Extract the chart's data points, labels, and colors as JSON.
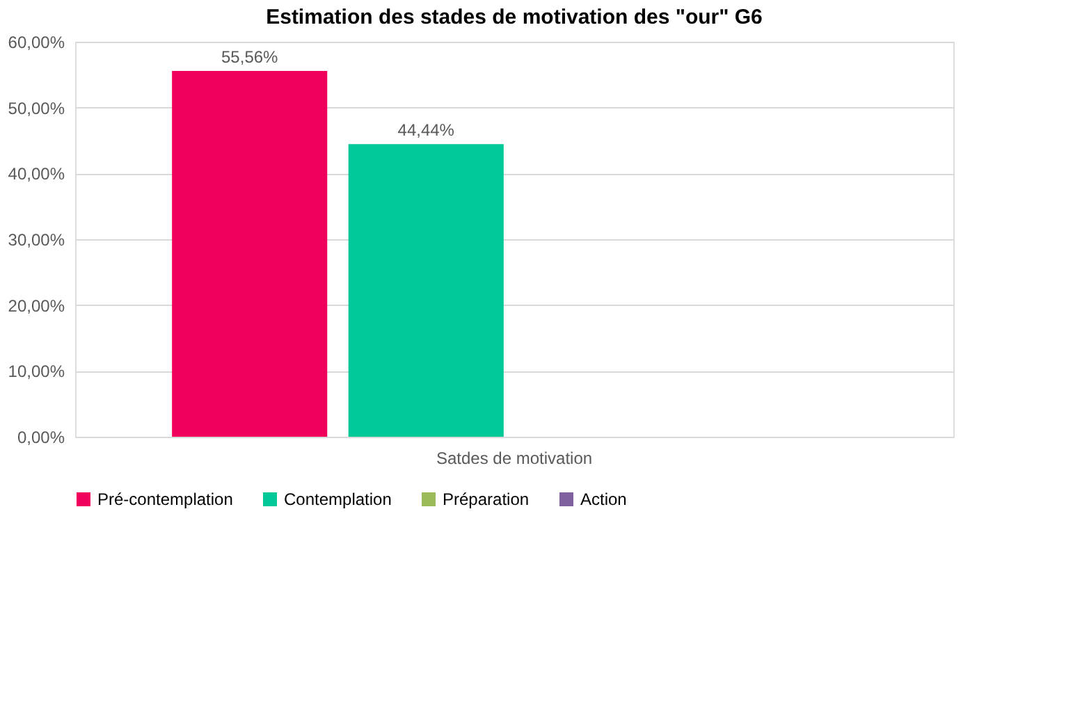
{
  "chart_data": {
    "type": "bar",
    "title": "Estimation des stades de motivation des \"our\" G6",
    "categories": [
      "Satdes de motivation"
    ],
    "series": [
      {
        "name": "Pré-contemplation",
        "color": "#f0005a",
        "values": [
          55.56
        ],
        "value_labels": [
          "55,56%"
        ]
      },
      {
        "name": "Contemplation",
        "color": "#00c896",
        "values": [
          44.44
        ],
        "value_labels": [
          "44,44%"
        ]
      },
      {
        "name": "Préparation",
        "color": "#9bbb59",
        "values": [
          null
        ],
        "value_labels": [
          null
        ]
      },
      {
        "name": "Action",
        "color": "#7f61a0",
        "values": [
          null
        ],
        "value_labels": [
          null
        ]
      }
    ],
    "ylim": [
      0,
      60
    ],
    "yticks": [
      {
        "value": 0,
        "label": "0,00%"
      },
      {
        "value": 10,
        "label": "10,00%"
      },
      {
        "value": 20,
        "label": "20,00%"
      },
      {
        "value": 30,
        "label": "30,00%"
      },
      {
        "value": 40,
        "label": "40,00%"
      },
      {
        "value": 50,
        "label": "50,00%"
      },
      {
        "value": 60,
        "label": "60,00%"
      }
    ],
    "grid": "y",
    "legend": "bottom"
  }
}
